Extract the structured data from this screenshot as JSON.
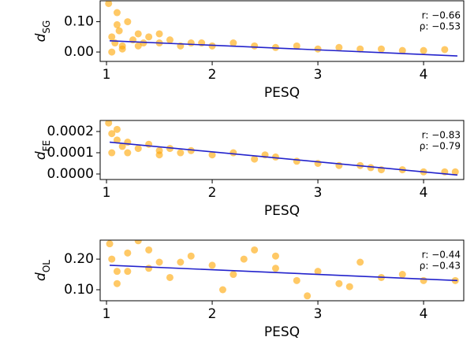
{
  "chart_data": [
    {
      "type": "scatter",
      "xlabel": "PESQ",
      "ylabel": "d",
      "ylabel_sub": "SG",
      "annotations": [
        "r: −0.66",
        "ρ: −0.53"
      ],
      "xlim": [
        0.94,
        4.38
      ],
      "ylim": [
        -0.031,
        0.169
      ],
      "xticks": [
        1,
        2,
        3,
        4
      ],
      "yticks": [
        {
          "value": 0.0,
          "label": "0.00"
        },
        {
          "value": 0.1,
          "label": "0.10"
        }
      ],
      "series": [
        {
          "color": "#ffa500",
          "x": [
            1.02,
            1.05,
            1.08,
            1.1,
            1.12,
            1.15,
            1.2,
            1.25,
            1.3,
            1.35,
            1.4,
            1.5,
            1.6,
            1.7,
            1.8,
            1.9,
            2.0,
            2.2,
            2.4,
            2.6,
            2.8,
            3.0,
            3.2,
            3.4,
            3.6,
            3.8,
            4.0,
            4.2,
            1.05,
            1.15,
            1.3,
            1.1,
            1.5
          ],
          "values": [
            0.16,
            0.05,
            0.03,
            0.13,
            0.07,
            0.02,
            0.1,
            0.04,
            0.06,
            0.03,
            0.05,
            0.03,
            0.04,
            0.02,
            0.03,
            0.03,
            0.02,
            0.03,
            0.02,
            0.015,
            0.02,
            0.01,
            0.015,
            0.01,
            0.01,
            0.005,
            0.005,
            0.008,
            0.0,
            0.01,
            0.02,
            0.09,
            0.06
          ]
        }
      ],
      "fit": {
        "color": "#2222cc",
        "x": [
          1.03,
          4.32
        ],
        "values": [
          0.037,
          -0.013
        ]
      }
    },
    {
      "type": "scatter",
      "xlabel": "PESQ",
      "ylabel": "d",
      "ylabel_sub": "FE",
      "annotations": [
        "r: −0.83",
        "ρ: −0.79"
      ],
      "xlim": [
        0.94,
        4.38
      ],
      "ylim": [
        -2.6e-05,
        0.000252
      ],
      "xticks": [
        1,
        2,
        3,
        4
      ],
      "yticks": [
        {
          "value": 0.0,
          "label": "0.0000"
        },
        {
          "value": 0.0001,
          "label": "0.0001"
        },
        {
          "value": 0.0002,
          "label": "0.0002"
        }
      ],
      "series": [
        {
          "color": "#ffa500",
          "x": [
            1.02,
            1.05,
            1.1,
            1.15,
            1.2,
            1.3,
            1.4,
            1.5,
            1.6,
            1.7,
            1.8,
            2.0,
            2.2,
            2.4,
            2.6,
            2.8,
            3.0,
            3.2,
            3.4,
            3.6,
            3.8,
            4.0,
            4.2,
            4.3,
            1.05,
            1.2,
            1.5,
            1.1,
            2.5,
            3.5
          ],
          "values": [
            0.00024,
            0.00019,
            0.00016,
            0.00013,
            0.00015,
            0.00012,
            0.00014,
            0.00011,
            0.00012,
            0.0001,
            0.00011,
            9e-05,
            0.0001,
            7e-05,
            8e-05,
            6e-05,
            5e-05,
            4e-05,
            4e-05,
            2e-05,
            2e-05,
            1e-05,
            1e-05,
            1e-05,
            0.0001,
            0.0001,
            9e-05,
            0.00021,
            9e-05,
            3e-05
          ]
        }
      ],
      "fit": {
        "color": "#2222cc",
        "x": [
          1.03,
          4.32
        ],
        "values": [
          0.00015,
          -5e-06
        ]
      }
    },
    {
      "type": "scatter",
      "xlabel": "PESQ",
      "ylabel": "d",
      "ylabel_sub": "OL",
      "annotations": [
        "r: −0.44",
        "ρ: −0.43"
      ],
      "xlim": [
        0.94,
        4.38
      ],
      "ylim": [
        0.064,
        0.262
      ],
      "xticks": [
        1,
        2,
        3,
        4
      ],
      "yticks": [
        {
          "value": 0.1,
          "label": "0.10"
        },
        {
          "value": 0.2,
          "label": "0.20"
        }
      ],
      "series": [
        {
          "color": "#ffa500",
          "x": [
            1.03,
            1.05,
            1.1,
            1.2,
            1.3,
            1.4,
            1.5,
            1.6,
            1.8,
            2.0,
            2.2,
            2.4,
            2.6,
            2.8,
            3.0,
            3.2,
            3.4,
            3.6,
            3.8,
            4.0,
            4.3,
            1.1,
            1.4,
            1.7,
            2.3,
            2.9,
            3.3,
            1.2,
            2.1,
            2.6
          ],
          "values": [
            0.25,
            0.2,
            0.16,
            0.22,
            0.26,
            0.17,
            0.19,
            0.14,
            0.21,
            0.18,
            0.15,
            0.23,
            0.17,
            0.13,
            0.16,
            0.12,
            0.19,
            0.14,
            0.15,
            0.13,
            0.13,
            0.12,
            0.23,
            0.19,
            0.2,
            0.08,
            0.11,
            0.16,
            0.1,
            0.21
          ]
        }
      ],
      "fit": {
        "color": "#2222cc",
        "x": [
          1.03,
          4.32
        ],
        "values": [
          0.18,
          0.13
        ]
      }
    }
  ]
}
